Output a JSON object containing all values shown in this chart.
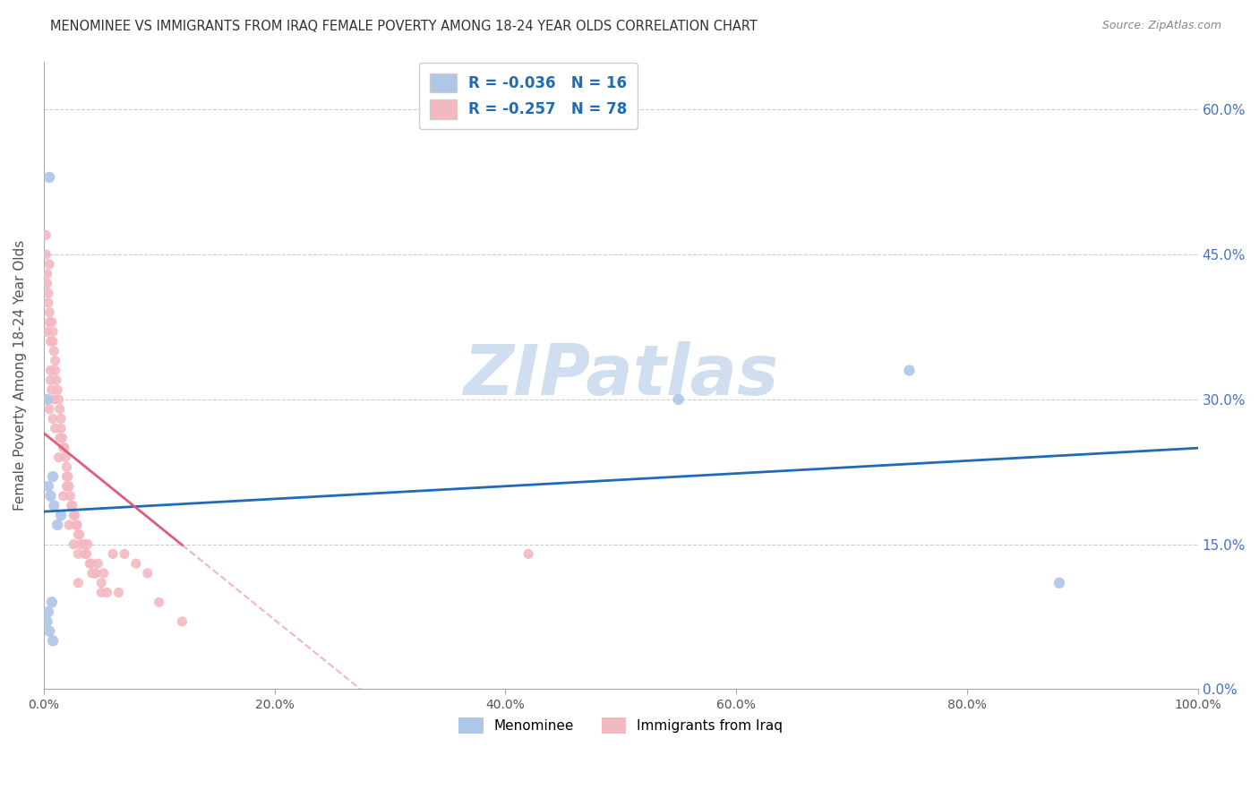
{
  "title": "MENOMINEE VS IMMIGRANTS FROM IRAQ FEMALE POVERTY AMONG 18-24 YEAR OLDS CORRELATION CHART",
  "source": "Source: ZipAtlas.com",
  "ylabel": "Female Poverty Among 18-24 Year Olds",
  "yticks": [
    "0.0%",
    "15.0%",
    "30.0%",
    "45.0%",
    "60.0%"
  ],
  "ytick_vals": [
    0,
    15,
    30,
    45,
    60
  ],
  "xticks": [
    "0.0%",
    "20.0%",
    "40.0%",
    "60.0%",
    "80.0%",
    "100.0%"
  ],
  "xtick_vals": [
    0,
    20,
    40,
    60,
    80,
    100
  ],
  "xlim": [
    0,
    100
  ],
  "ylim": [
    0,
    65
  ],
  "watermark": "ZIPatlas",
  "menominee_x": [
    0.5,
    0.3,
    0.8,
    0.4,
    0.6,
    0.9,
    1.5,
    1.2,
    0.7,
    0.4,
    0.3,
    0.5,
    0.8,
    55,
    75,
    88
  ],
  "menominee_y": [
    53,
    30,
    22,
    21,
    20,
    19,
    18,
    17,
    9,
    8,
    7,
    6,
    5,
    30,
    33,
    11
  ],
  "iraq_x": [
    0.2,
    0.3,
    0.4,
    0.5,
    0.5,
    0.6,
    0.7,
    0.8,
    0.8,
    0.9,
    1.0,
    1.0,
    1.1,
    1.2,
    1.3,
    1.4,
    1.5,
    1.5,
    1.6,
    1.7,
    1.8,
    1.9,
    2.0,
    2.0,
    2.1,
    2.2,
    2.3,
    2.4,
    2.5,
    2.6,
    2.7,
    2.8,
    2.9,
    3.0,
    3.1,
    3.2,
    3.5,
    3.6,
    3.7,
    4.0,
    4.1,
    4.2,
    4.5,
    4.7,
    5.0,
    5.0,
    5.2,
    5.5,
    6.0,
    6.5,
    7.0,
    8.0,
    9.0,
    10.0,
    12.0,
    0.2,
    0.3,
    0.4,
    0.5,
    0.6,
    0.7,
    0.8,
    1.0,
    1.3,
    1.4,
    1.7,
    2.0,
    2.2,
    2.6,
    3.0,
    3.8,
    4.5,
    0.3,
    0.5,
    3.0,
    42.0,
    0.6,
    0.9
  ],
  "iraq_y": [
    47,
    42,
    41,
    44,
    39,
    36,
    38,
    37,
    36,
    35,
    34,
    33,
    32,
    31,
    30,
    29,
    28,
    27,
    26,
    25,
    25,
    24,
    23,
    22,
    22,
    21,
    20,
    19,
    19,
    18,
    18,
    17,
    17,
    16,
    16,
    15,
    15,
    14,
    14,
    13,
    13,
    12,
    12,
    13,
    11,
    10,
    12,
    10,
    14,
    10,
    14,
    13,
    12,
    9,
    7,
    45,
    43,
    40,
    38,
    33,
    31,
    28,
    27,
    24,
    26,
    20,
    21,
    17,
    15,
    14,
    15,
    12,
    37,
    29,
    11,
    14,
    32,
    30
  ],
  "blue_line_color": "#1f6bb5",
  "pink_line_color": "#e05c7a",
  "dot_size_menominee": 80,
  "dot_size_iraq": 65,
  "menominee_dot_color": "#aec6e8",
  "iraq_dot_color": "#f4b8c1",
  "background_color": "#ffffff",
  "grid_color": "#cccccc",
  "title_color": "#333333",
  "tick_color_right": "#4472c4",
  "watermark_color": "#d0dff0",
  "blue_line_x_start": 0,
  "blue_line_x_end": 100,
  "pink_solid_x_end": 12,
  "pink_dash_x_end": 38
}
